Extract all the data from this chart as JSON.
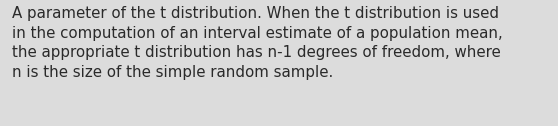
{
  "text": "A parameter of the t distribution. When the t distribution is used\nin the computation of an interval estimate of a population mean,\nthe appropriate t distribution has n-1 degrees of freedom, where\nn is the size of the simple random sample.",
  "background_color": "#dcdcdc",
  "text_color": "#2a2a2a",
  "font_size": 10.8,
  "font_family": "DejaVu Sans",
  "fig_width": 5.58,
  "fig_height": 1.26,
  "dpi": 100
}
